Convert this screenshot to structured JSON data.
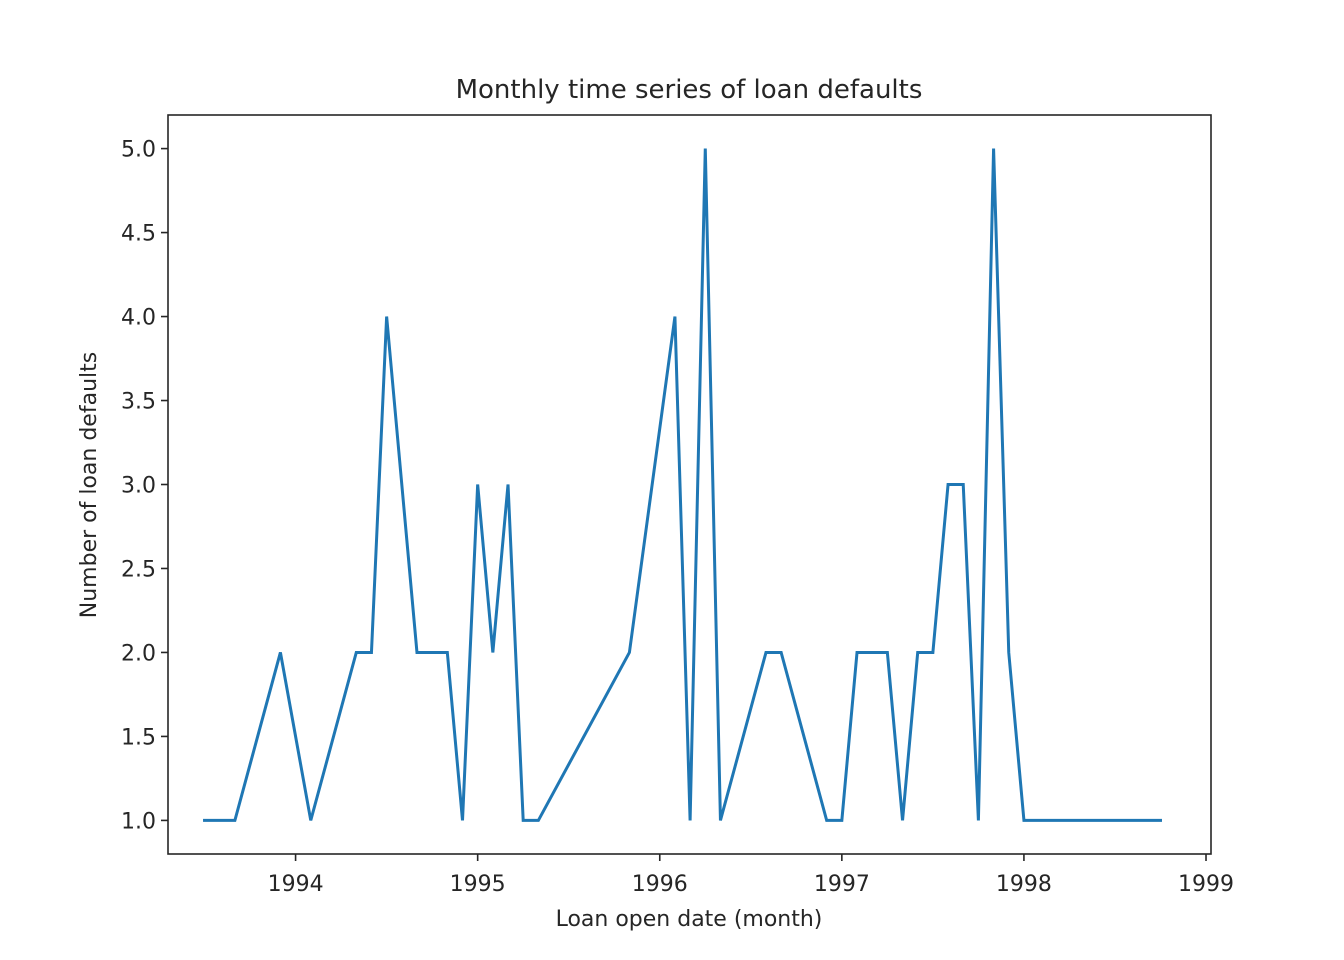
{
  "chart_data": {
    "type": "line",
    "title": "Monthly time series of loan defaults",
    "xlabel": "Loan open date (month)",
    "ylabel": "Number of loan defaults",
    "xlim": [
      "1993-04-19",
      "1999-01-11"
    ],
    "ylim": [
      0.8,
      5.2
    ],
    "x_ticks": [
      1994,
      1995,
      1996,
      1997,
      1998,
      1999
    ],
    "y_ticks": [
      "1.0",
      "1.5",
      "2.0",
      "2.5",
      "3.0",
      "3.5",
      "4.0",
      "4.5",
      "5.0"
    ],
    "grid": false,
    "legend": "none",
    "series_color": "#1f77b4",
    "series": [
      {
        "x": [
          "1993-07",
          "1993-08",
          "1993-09",
          "1993-12",
          "1994-02",
          "1994-05",
          "1994-06",
          "1994-07",
          "1994-09",
          "1994-10",
          "1994-11",
          "1994-12",
          "1995-01",
          "1995-02",
          "1995-03",
          "1995-04",
          "1995-05",
          "1995-11",
          "1996-02",
          "1996-03",
          "1996-04",
          "1996-05",
          "1996-08",
          "1996-09",
          "1996-12",
          "1997-01",
          "1997-02",
          "1997-03",
          "1997-04",
          "1997-05",
          "1997-06",
          "1997-07",
          "1997-08",
          "1997-09",
          "1997-10",
          "1997-11",
          "1997-12",
          "1998-01",
          "1998-10"
        ],
        "values": [
          1,
          1,
          1,
          2,
          1,
          2,
          2,
          4,
          2,
          2,
          2,
          1,
          3,
          2,
          3,
          1,
          1,
          2,
          4,
          1,
          5,
          1,
          2,
          2,
          1,
          1,
          2,
          2,
          2,
          1,
          2,
          2,
          3,
          3,
          1,
          5,
          2,
          1,
          1
        ]
      }
    ]
  }
}
